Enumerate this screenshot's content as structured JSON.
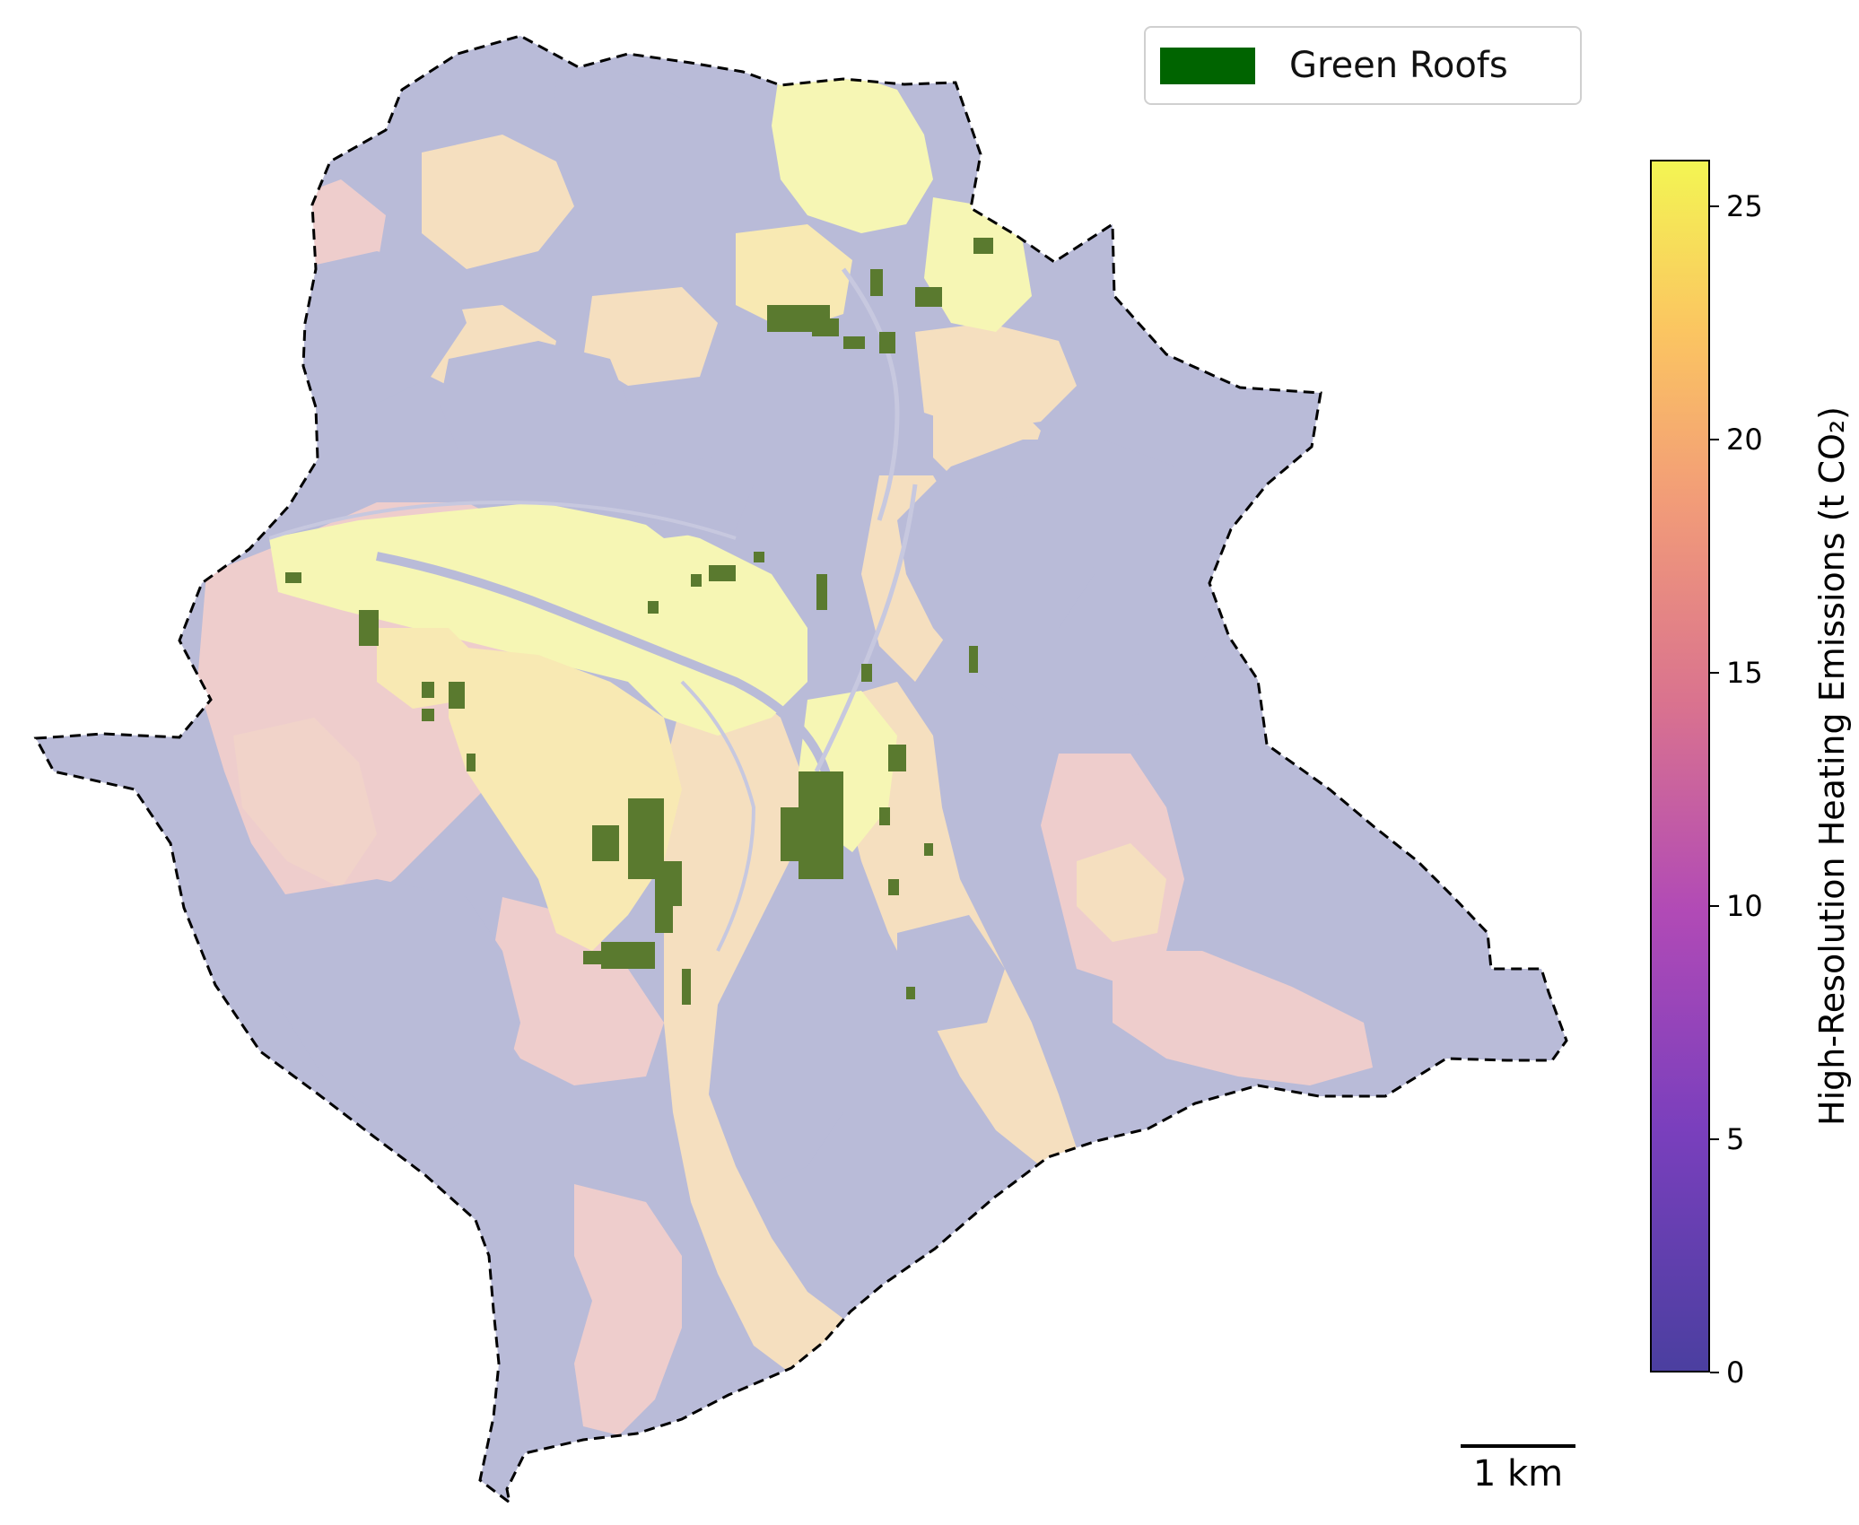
{
  "legend": {
    "label": "Green Roofs",
    "swatch_color": "#006400"
  },
  "scale_bar": {
    "label": "1 km"
  },
  "colorbar": {
    "title": "High-Resolution Heating Emissions (t CO₂)",
    "colormap": "plasma (alpha-faded)",
    "range": [
      0,
      26
    ],
    "ticks": [
      "0",
      "5",
      "10",
      "15",
      "20",
      "25"
    ],
    "tick_values": [
      0,
      5,
      10,
      15,
      20,
      25
    ]
  },
  "map": {
    "boundary_style": "dashed-black",
    "background_zone_color": "#b9bbd8",
    "emission_colors": [
      "#eecdcc",
      "#f5dfbf",
      "#f8e9b3",
      "#f6f6b4"
    ],
    "green_roof_color": "#5a7a2f"
  }
}
